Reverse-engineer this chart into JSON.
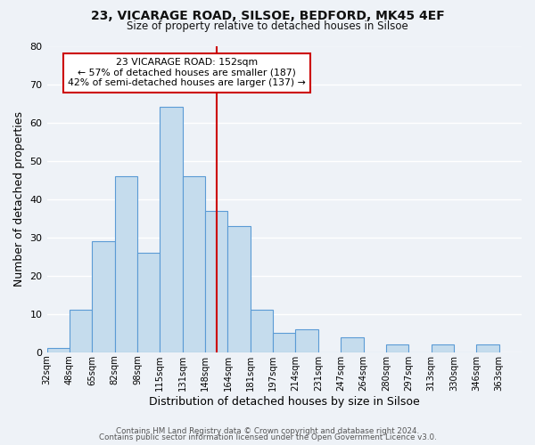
{
  "title_line1": "23, VICARAGE ROAD, SILSOE, BEDFORD, MK45 4EF",
  "title_line2": "Size of property relative to detached houses in Silsoe",
  "xlabel": "Distribution of detached houses by size in Silsoe",
  "ylabel": "Number of detached properties",
  "bin_labels": [
    "32sqm",
    "48sqm",
    "65sqm",
    "82sqm",
    "98sqm",
    "115sqm",
    "131sqm",
    "148sqm",
    "164sqm",
    "181sqm",
    "197sqm",
    "214sqm",
    "231sqm",
    "247sqm",
    "264sqm",
    "280sqm",
    "297sqm",
    "313sqm",
    "330sqm",
    "346sqm",
    "363sqm"
  ],
  "bar_values": [
    1,
    11,
    29,
    46,
    26,
    64,
    46,
    37,
    33,
    11,
    5,
    6,
    0,
    4,
    0,
    2,
    0,
    2,
    0,
    2
  ],
  "bar_color": "#c5dced",
  "bar_edge_color": "#5b9bd5",
  "vline_x": 7.5,
  "vline_color": "#cc0000",
  "annotation_title": "23 VICARAGE ROAD: 152sqm",
  "annotation_line1": "← 57% of detached houses are smaller (187)",
  "annotation_line2": "42% of semi-detached houses are larger (137) →",
  "annotation_box_facecolor": "#ffffff",
  "annotation_box_edgecolor": "#cc0000",
  "ylim": [
    0,
    80
  ],
  "yticks": [
    0,
    10,
    20,
    30,
    40,
    50,
    60,
    70,
    80
  ],
  "footer_line1": "Contains HM Land Registry data © Crown copyright and database right 2024.",
  "footer_line2": "Contains public sector information licensed under the Open Government Licence v3.0.",
  "background_color": "#eef2f7",
  "grid_color": "#ffffff",
  "grid_linewidth": 1.0
}
